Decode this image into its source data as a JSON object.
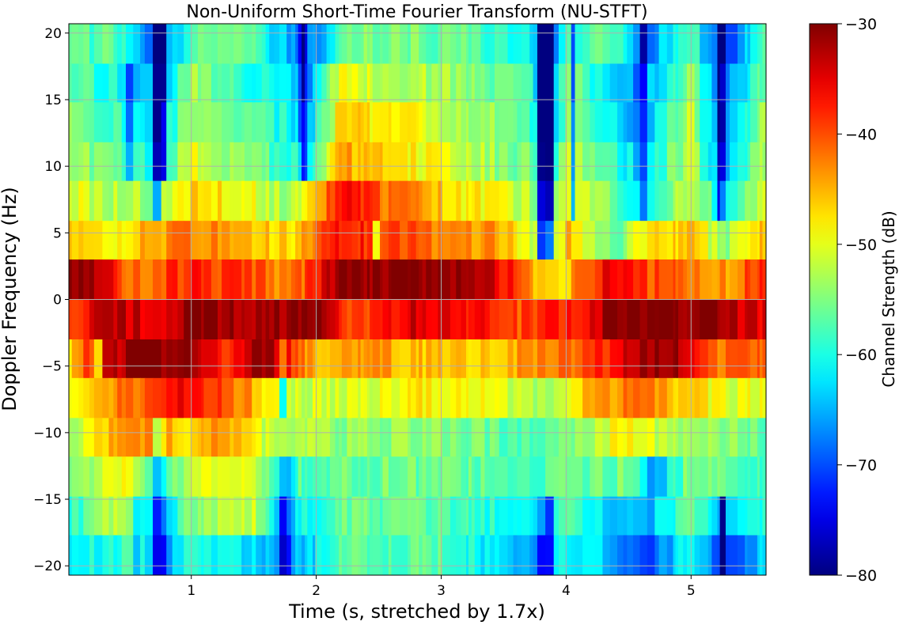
{
  "chart_data": {
    "type": "heatmap",
    "title": "Non-Uniform Short-Time Fourier Transform (NU-STFT)",
    "xlabel": "Time (s, stretched by 1.7x)",
    "ylabel": "Doppler Frequency (Hz)",
    "colorbar_label": "Channel Strength (dB)",
    "colormap": "jet",
    "xlim": [
      0.02,
      5.6
    ],
    "ylim": [
      -20.7,
      20.7
    ],
    "xticks": [
      1,
      2,
      3,
      4,
      5
    ],
    "yticks": [
      -20,
      -15,
      -10,
      -5,
      0,
      5,
      10,
      15,
      20
    ],
    "clim": [
      -80,
      -30
    ],
    "cbticks": [
      -80,
      -70,
      -60,
      -50,
      -40,
      -30
    ],
    "grid": true,
    "frequency_bins": [
      {
        "range": [
          17.7,
          20.7
        ]
      },
      {
        "range": [
          14.8,
          17.7
        ]
      },
      {
        "range": [
          11.8,
          14.8
        ]
      },
      {
        "range": [
          8.9,
          11.8
        ]
      },
      {
        "range": [
          5.9,
          8.9
        ]
      },
      {
        "range": [
          3.0,
          5.9
        ]
      },
      {
        "range": [
          0.0,
          3.0
        ]
      },
      {
        "range": [
          -3.0,
          0.0
        ]
      },
      {
        "range": [
          -5.9,
          -3.0
        ]
      },
      {
        "range": [
          -8.9,
          -5.9
        ]
      },
      {
        "range": [
          -11.8,
          -8.9
        ]
      },
      {
        "range": [
          -14.8,
          -11.8
        ]
      },
      {
        "range": [
          -17.7,
          -14.8
        ]
      },
      {
        "range": [
          -20.7,
          -17.7
        ]
      }
    ],
    "row_profiles": [
      [
        [
          0.0,
          -58
        ],
        [
          0.35,
          -57
        ],
        [
          0.75,
          -70
        ],
        [
          1.0,
          -57
        ],
        [
          1.5,
          -56
        ],
        [
          1.7,
          -64
        ],
        [
          1.95,
          -68
        ],
        [
          2.3,
          -55
        ],
        [
          3.0,
          -56
        ],
        [
          3.7,
          -60
        ],
        [
          3.85,
          -72
        ],
        [
          4.0,
          -58
        ],
        [
          4.4,
          -57
        ],
        [
          4.6,
          -70
        ],
        [
          5.0,
          -56
        ],
        [
          5.25,
          -72
        ],
        [
          5.6,
          -58
        ]
      ],
      [
        [
          0.0,
          -55
        ],
        [
          0.75,
          -66
        ],
        [
          1.0,
          -54
        ],
        [
          1.7,
          -62
        ],
        [
          1.95,
          -66
        ],
        [
          2.2,
          -48
        ],
        [
          2.5,
          -52
        ],
        [
          3.0,
          -53
        ],
        [
          3.7,
          -58
        ],
        [
          3.85,
          -70
        ],
        [
          4.0,
          -55
        ],
        [
          4.6,
          -68
        ],
        [
          5.0,
          -53
        ],
        [
          5.25,
          -70
        ],
        [
          5.6,
          -55
        ]
      ],
      [
        [
          0.0,
          -52
        ],
        [
          0.75,
          -64
        ],
        [
          1.0,
          -52
        ],
        [
          1.7,
          -60
        ],
        [
          1.95,
          -64
        ],
        [
          2.2,
          -46
        ],
        [
          2.5,
          -48
        ],
        [
          3.0,
          -51
        ],
        [
          3.7,
          -57
        ],
        [
          3.85,
          -70
        ],
        [
          4.0,
          -54
        ],
        [
          4.6,
          -66
        ],
        [
          5.0,
          -52
        ],
        [
          5.25,
          -70
        ],
        [
          5.6,
          -52
        ]
      ],
      [
        [
          0.0,
          -52
        ],
        [
          0.5,
          -58
        ],
        [
          0.75,
          -62
        ],
        [
          1.0,
          -50
        ],
        [
          1.7,
          -58
        ],
        [
          1.95,
          -60
        ],
        [
          2.2,
          -44
        ],
        [
          2.5,
          -47
        ],
        [
          3.0,
          -50
        ],
        [
          3.7,
          -56
        ],
        [
          3.85,
          -68
        ],
        [
          4.0,
          -52
        ],
        [
          4.6,
          -64
        ],
        [
          5.0,
          -51
        ],
        [
          5.25,
          -68
        ],
        [
          5.6,
          -52
        ]
      ],
      [
        [
          0.0,
          -50
        ],
        [
          0.7,
          -54
        ],
        [
          1.0,
          -46
        ],
        [
          1.5,
          -50
        ],
        [
          1.8,
          -54
        ],
        [
          2.2,
          -36
        ],
        [
          2.45,
          -40
        ],
        [
          2.8,
          -44
        ],
        [
          3.2,
          -48
        ],
        [
          3.7,
          -52
        ],
        [
          3.85,
          -62
        ],
        [
          4.0,
          -50
        ],
        [
          4.6,
          -60
        ],
        [
          5.0,
          -50
        ],
        [
          5.25,
          -62
        ],
        [
          5.6,
          -50
        ]
      ],
      [
        [
          0.0,
          -44
        ],
        [
          0.4,
          -48
        ],
        [
          0.75,
          -44
        ],
        [
          1.0,
          -42
        ],
        [
          1.5,
          -45
        ],
        [
          1.8,
          -48
        ],
        [
          2.2,
          -36
        ],
        [
          2.6,
          -40
        ],
        [
          3.0,
          -42
        ],
        [
          3.5,
          -44
        ],
        [
          3.85,
          -55
        ],
        [
          4.0,
          -45
        ],
        [
          4.4,
          -58
        ],
        [
          4.6,
          -48
        ],
        [
          5.0,
          -45
        ],
        [
          5.25,
          -55
        ],
        [
          5.6,
          -45
        ]
      ],
      [
        [
          0.0,
          -30
        ],
        [
          0.35,
          -34
        ],
        [
          0.5,
          -42
        ],
        [
          1.0,
          -38
        ],
        [
          1.5,
          -40
        ],
        [
          1.8,
          -44
        ],
        [
          2.2,
          -30
        ],
        [
          2.6,
          -31
        ],
        [
          3.0,
          -30
        ],
        [
          3.4,
          -32
        ],
        [
          3.7,
          -44
        ],
        [
          4.0,
          -46
        ],
        [
          4.3,
          -36
        ],
        [
          4.7,
          -40
        ],
        [
          5.0,
          -42
        ],
        [
          5.3,
          -44
        ],
        [
          5.6,
          -36
        ]
      ],
      [
        [
          0.0,
          -40
        ],
        [
          0.3,
          -32
        ],
        [
          0.7,
          -35
        ],
        [
          1.0,
          -30
        ],
        [
          1.5,
          -32
        ],
        [
          2.0,
          -30
        ],
        [
          2.3,
          -40
        ],
        [
          2.8,
          -34
        ],
        [
          3.2,
          -36
        ],
        [
          3.6,
          -40
        ],
        [
          4.0,
          -38
        ],
        [
          4.4,
          -30
        ],
        [
          4.8,
          -30
        ],
        [
          5.2,
          -30
        ],
        [
          5.6,
          -36
        ]
      ],
      [
        [
          0.0,
          -48
        ],
        [
          0.3,
          -34
        ],
        [
          0.6,
          -30
        ],
        [
          1.0,
          -31
        ],
        [
          1.3,
          -38
        ],
        [
          1.6,
          -30
        ],
        [
          2.0,
          -46
        ],
        [
          2.5,
          -44
        ],
        [
          3.0,
          -46
        ],
        [
          3.5,
          -45
        ],
        [
          4.0,
          -42
        ],
        [
          4.4,
          -36
        ],
        [
          4.8,
          -30
        ],
        [
          5.2,
          -42
        ],
        [
          5.6,
          -40
        ]
      ],
      [
        [
          0.0,
          -50
        ],
        [
          0.3,
          -44
        ],
        [
          0.6,
          -40
        ],
        [
          1.0,
          -36
        ],
        [
          1.4,
          -42
        ],
        [
          1.7,
          -50
        ],
        [
          2.2,
          -52
        ],
        [
          2.8,
          -48
        ],
        [
          3.4,
          -50
        ],
        [
          3.8,
          -54
        ],
        [
          4.0,
          -48
        ],
        [
          4.5,
          -42
        ],
        [
          4.8,
          -44
        ],
        [
          5.2,
          -50
        ],
        [
          5.6,
          -50
        ]
      ],
      [
        [
          0.0,
          -56
        ],
        [
          0.35,
          -46
        ],
        [
          0.6,
          -44
        ],
        [
          1.0,
          -46
        ],
        [
          1.3,
          -44
        ],
        [
          1.6,
          -52
        ],
        [
          2.2,
          -54
        ],
        [
          3.0,
          -54
        ],
        [
          3.7,
          -58
        ],
        [
          4.0,
          -55
        ],
        [
          4.5,
          -48
        ],
        [
          4.8,
          -52
        ],
        [
          5.2,
          -54
        ],
        [
          5.6,
          -56
        ]
      ],
      [
        [
          0.0,
          -58
        ],
        [
          0.4,
          -48
        ],
        [
          0.75,
          -58
        ],
        [
          1.0,
          -52
        ],
        [
          1.4,
          -48
        ],
        [
          1.7,
          -58
        ],
        [
          2.2,
          -56
        ],
        [
          3.0,
          -56
        ],
        [
          3.7,
          -58
        ],
        [
          4.0,
          -56
        ],
        [
          4.5,
          -56
        ],
        [
          4.7,
          -66
        ],
        [
          5.0,
          -54
        ],
        [
          5.6,
          -58
        ]
      ],
      [
        [
          0.0,
          -60
        ],
        [
          0.4,
          -52
        ],
        [
          0.75,
          -66
        ],
        [
          1.0,
          -54
        ],
        [
          1.5,
          -52
        ],
        [
          1.7,
          -64
        ],
        [
          2.2,
          -56
        ],
        [
          3.0,
          -57
        ],
        [
          3.8,
          -62
        ],
        [
          4.0,
          -58
        ],
        [
          4.6,
          -66
        ],
        [
          5.0,
          -56
        ],
        [
          5.25,
          -64
        ],
        [
          5.6,
          -60
        ]
      ],
      [
        [
          0.0,
          -62
        ],
        [
          0.55,
          -58
        ],
        [
          0.75,
          -70
        ],
        [
          1.0,
          -58
        ],
        [
          1.7,
          -66
        ],
        [
          1.95,
          -64
        ],
        [
          2.2,
          -56
        ],
        [
          3.0,
          -57
        ],
        [
          3.8,
          -68
        ],
        [
          4.0,
          -60
        ],
        [
          4.7,
          -70
        ],
        [
          5.0,
          -58
        ],
        [
          5.25,
          -72
        ],
        [
          5.6,
          -62
        ]
      ]
    ],
    "stripes": [
      {
        "x": 0.72,
        "width": 0.045,
        "depth": -16,
        "rows": [
          0,
          4
        ],
        "intensity": 1.0
      },
      {
        "x": 0.78,
        "width": 0.03,
        "depth": -14,
        "rows": [
          0,
          3
        ],
        "intensity": 1.0
      },
      {
        "x": 0.51,
        "width": 0.02,
        "depth": -10,
        "rows": [
          1,
          3
        ],
        "intensity": 1.0
      },
      {
        "x": 1.9,
        "width": 0.05,
        "depth": -14,
        "rows": [
          0,
          3
        ],
        "intensity": 1.0
      },
      {
        "x": 3.8,
        "width": 0.045,
        "depth": -18,
        "rows": [
          0,
          5
        ],
        "intensity": 1.0
      },
      {
        "x": 3.87,
        "width": 0.03,
        "depth": -16,
        "rows": [
          0,
          5
        ],
        "intensity": 1.0
      },
      {
        "x": 4.06,
        "width": 0.03,
        "depth": -14,
        "rows": [
          0,
          4
        ],
        "intensity": 1.0
      },
      {
        "x": 4.6,
        "width": 0.035,
        "depth": -18,
        "rows": [
          0,
          4
        ],
        "intensity": 1.0
      },
      {
        "x": 5.23,
        "width": 0.04,
        "depth": -18,
        "rows": [
          0,
          4
        ],
        "intensity": 1.0
      },
      {
        "x": 4.4,
        "width": 0.02,
        "depth": -14,
        "rows": [
          5,
          5
        ],
        "intensity": 1.0
      },
      {
        "x": 0.25,
        "width": 0.02,
        "depth": -14,
        "rows": [
          8,
          8
        ],
        "intensity": 1.0
      },
      {
        "x": 1.74,
        "width": 0.02,
        "depth": -12,
        "rows": [
          8,
          9
        ],
        "intensity": 1.0
      },
      {
        "x": 2.48,
        "width": 0.02,
        "depth": -12,
        "rows": [
          5,
          5
        ],
        "intensity": 1.0
      },
      {
        "x": 3.85,
        "width": 0.02,
        "depth": -14,
        "rows": [
          8,
          9
        ],
        "intensity": 1.0
      },
      {
        "x": 0.75,
        "width": 0.04,
        "depth": -16,
        "rows": [
          10,
          13
        ],
        "intensity": 1.0
      },
      {
        "x": 1.75,
        "width": 0.09,
        "depth": -10,
        "rows": [
          11,
          13
        ],
        "intensity": 1.0
      },
      {
        "x": 3.85,
        "width": 0.07,
        "depth": -12,
        "rows": [
          12,
          13
        ],
        "intensity": 1.0
      },
      {
        "x": 4.7,
        "width": 0.02,
        "depth": -18,
        "rows": [
          10,
          13
        ],
        "intensity": 1.0
      },
      {
        "x": 5.25,
        "width": 0.03,
        "depth": -16,
        "rows": [
          12,
          13
        ],
        "intensity": 1.0
      },
      {
        "x": 0.55,
        "width": 0.02,
        "depth": -16,
        "rows": [
          12,
          13
        ],
        "intensity": 1.0
      },
      {
        "x": 0.24,
        "width": 0.02,
        "depth": -14,
        "rows": [
          13,
          13
        ],
        "intensity": 1.0
      }
    ]
  }
}
